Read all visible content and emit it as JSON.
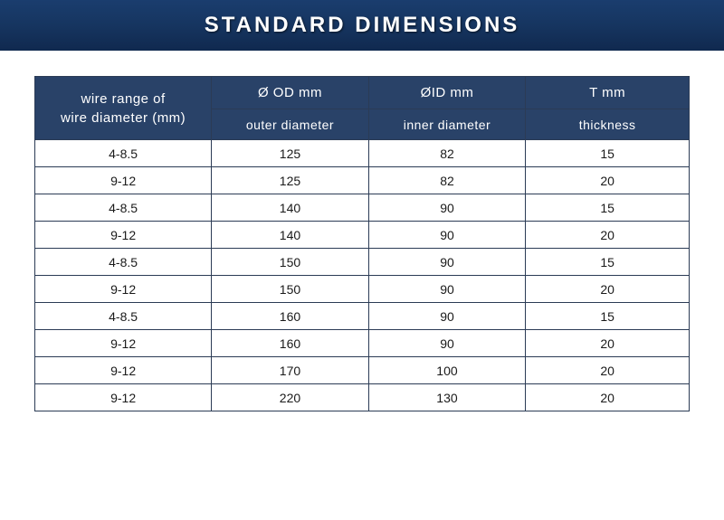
{
  "banner": {
    "title": "STANDARD DIMENSIONS",
    "bg_gradient_top": "#1a3d6e",
    "bg_gradient_mid": "#163560",
    "bg_gradient_bot": "#10294f",
    "text_color": "#ffffff",
    "title_fontsize": 24,
    "letter_spacing": 3
  },
  "table": {
    "header_bg": "#294268",
    "header_text_color": "#ffffff",
    "border_color": "#2b3b55",
    "body_bg": "#ffffff",
    "body_text_color": "#1a1a1a",
    "body_fontsize": 14,
    "header_fontsize": 15,
    "columns": {
      "merged_label_line1": "wire range of",
      "merged_label_line2": "wire diameter (mm)",
      "top": [
        "Ø OD    mm",
        "ØID    mm",
        "T    mm"
      ],
      "sub": [
        "outer diameter",
        "inner diameter",
        "thickness"
      ]
    },
    "rows": [
      {
        "range": "4-8.5",
        "od": "125",
        "id": "82",
        "t": "15"
      },
      {
        "range": "9-12",
        "od": "125",
        "id": "82",
        "t": "20"
      },
      {
        "range": "4-8.5",
        "od": "140",
        "id": "90",
        "t": "15"
      },
      {
        "range": "9-12",
        "od": "140",
        "id": "90",
        "t": "20"
      },
      {
        "range": "4-8.5",
        "od": "150",
        "id": "90",
        "t": "15"
      },
      {
        "range": "9-12",
        "od": "150",
        "id": "90",
        "t": "20"
      },
      {
        "range": "4-8.5",
        "od": "160",
        "id": "90",
        "t": "15"
      },
      {
        "range": "9-12",
        "od": "160",
        "id": "90",
        "t": "20"
      },
      {
        "range": "9-12",
        "od": "170",
        "id": "100",
        "t": "20"
      },
      {
        "range": "9-12",
        "od": "220",
        "id": "130",
        "t": "20"
      }
    ]
  }
}
